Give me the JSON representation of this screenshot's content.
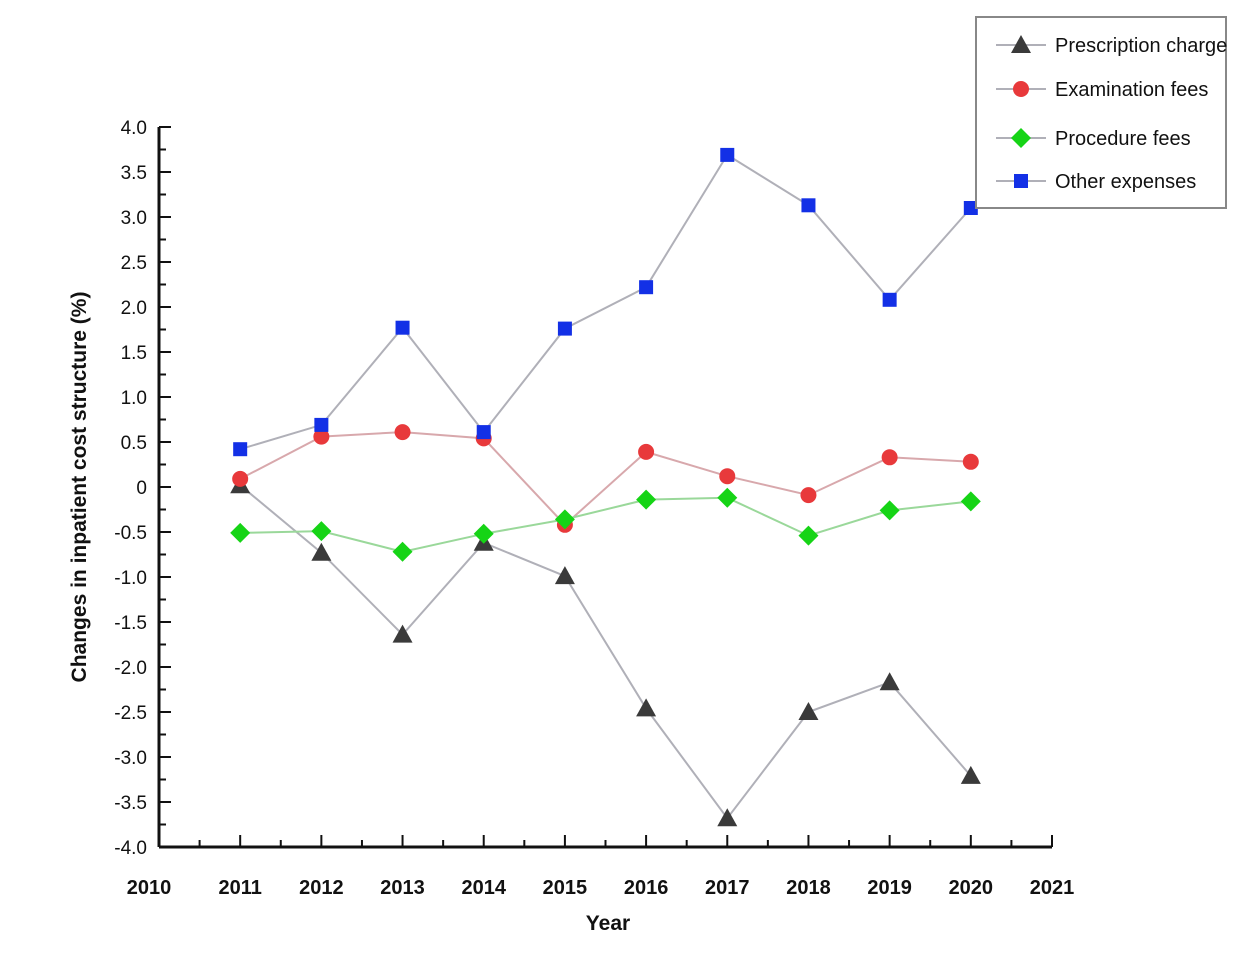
{
  "chart_data": {
    "type": "line",
    "title": "",
    "xlabel": "Year",
    "ylabel": "Changes in inpatient cost structure (%)",
    "xlim": [
      2010,
      2021
    ],
    "ylim": [
      -4.0,
      4.0
    ],
    "grid": false,
    "legend_position": "top-right",
    "x_ticks": [
      "2010",
      "2011",
      "2012",
      "2013",
      "2014",
      "2015",
      "2016",
      "2017",
      "2018",
      "2019",
      "2020",
      "2021"
    ],
    "y_ticks": [
      "4.0",
      "3.5",
      "3.0",
      "2.5",
      "2.0",
      "1.5",
      "1.0",
      "0.5",
      "0",
      "-0.5",
      "-1.0",
      "-1.5",
      "-2.0",
      "-2.5",
      "-3.0",
      "-3.5",
      "-4.0"
    ],
    "x": [
      2011,
      2012,
      2013,
      2014,
      2015,
      2016,
      2017,
      2018,
      2019,
      2020
    ],
    "series": [
      {
        "name": "Prescription charge",
        "marker": "triangle",
        "color": "#3a3a3a",
        "values": [
          0.02,
          -0.73,
          -1.64,
          -0.62,
          -0.99,
          -2.46,
          -3.68,
          -2.5,
          -2.17,
          -3.21
        ]
      },
      {
        "name": "Examination fees",
        "marker": "circle",
        "color": "#e8393b",
        "values": [
          0.09,
          0.56,
          0.61,
          0.54,
          -0.42,
          0.39,
          0.12,
          -0.09,
          0.33,
          0.28
        ]
      },
      {
        "name": "Procedure fees",
        "marker": "diamond",
        "color": "#16d416",
        "values": [
          -0.51,
          -0.49,
          -0.72,
          -0.52,
          -0.36,
          -0.14,
          -0.12,
          -0.54,
          -0.26,
          -0.16
        ]
      },
      {
        "name": "Other expenses",
        "marker": "square",
        "color": "#1330e6",
        "values": [
          0.42,
          0.69,
          1.77,
          0.61,
          1.76,
          2.22,
          3.69,
          3.13,
          2.08,
          3.1
        ]
      }
    ],
    "line_color": "#b0b0b8"
  }
}
